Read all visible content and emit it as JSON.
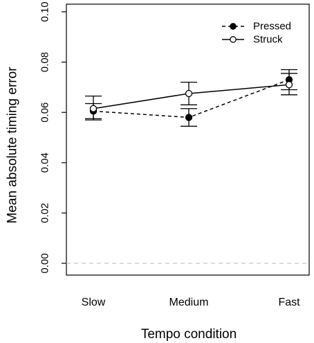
{
  "chart_data": {
    "type": "line",
    "title": "",
    "xlabel": "Tempo condition",
    "ylabel": "Mean absolute timing error",
    "categories": [
      "Slow",
      "Medium",
      "Fast"
    ],
    "ylim": [
      0.0,
      0.1
    ],
    "yticks": [
      "0.00",
      "0.02",
      "0.04",
      "0.06",
      "0.08",
      "0.10"
    ],
    "reference_line": {
      "y": 0.0,
      "style": "dashed",
      "color": "#c8c8c8"
    },
    "grid": false,
    "legend_position": "top-right",
    "series": [
      {
        "name": "Pressed",
        "line_style": "dashed",
        "marker": "filled-circle",
        "values": [
          0.0605,
          0.058,
          0.073
        ],
        "error_low": [
          0.0575,
          0.0545,
          0.069
        ],
        "error_high": [
          0.0635,
          0.0615,
          0.077
        ]
      },
      {
        "name": "Struck",
        "line_style": "solid",
        "marker": "open-circle",
        "values": [
          0.0615,
          0.0675,
          0.071
        ],
        "error_low": [
          0.057,
          0.063,
          0.067
        ],
        "error_high": [
          0.0665,
          0.072,
          0.0755
        ]
      }
    ]
  }
}
